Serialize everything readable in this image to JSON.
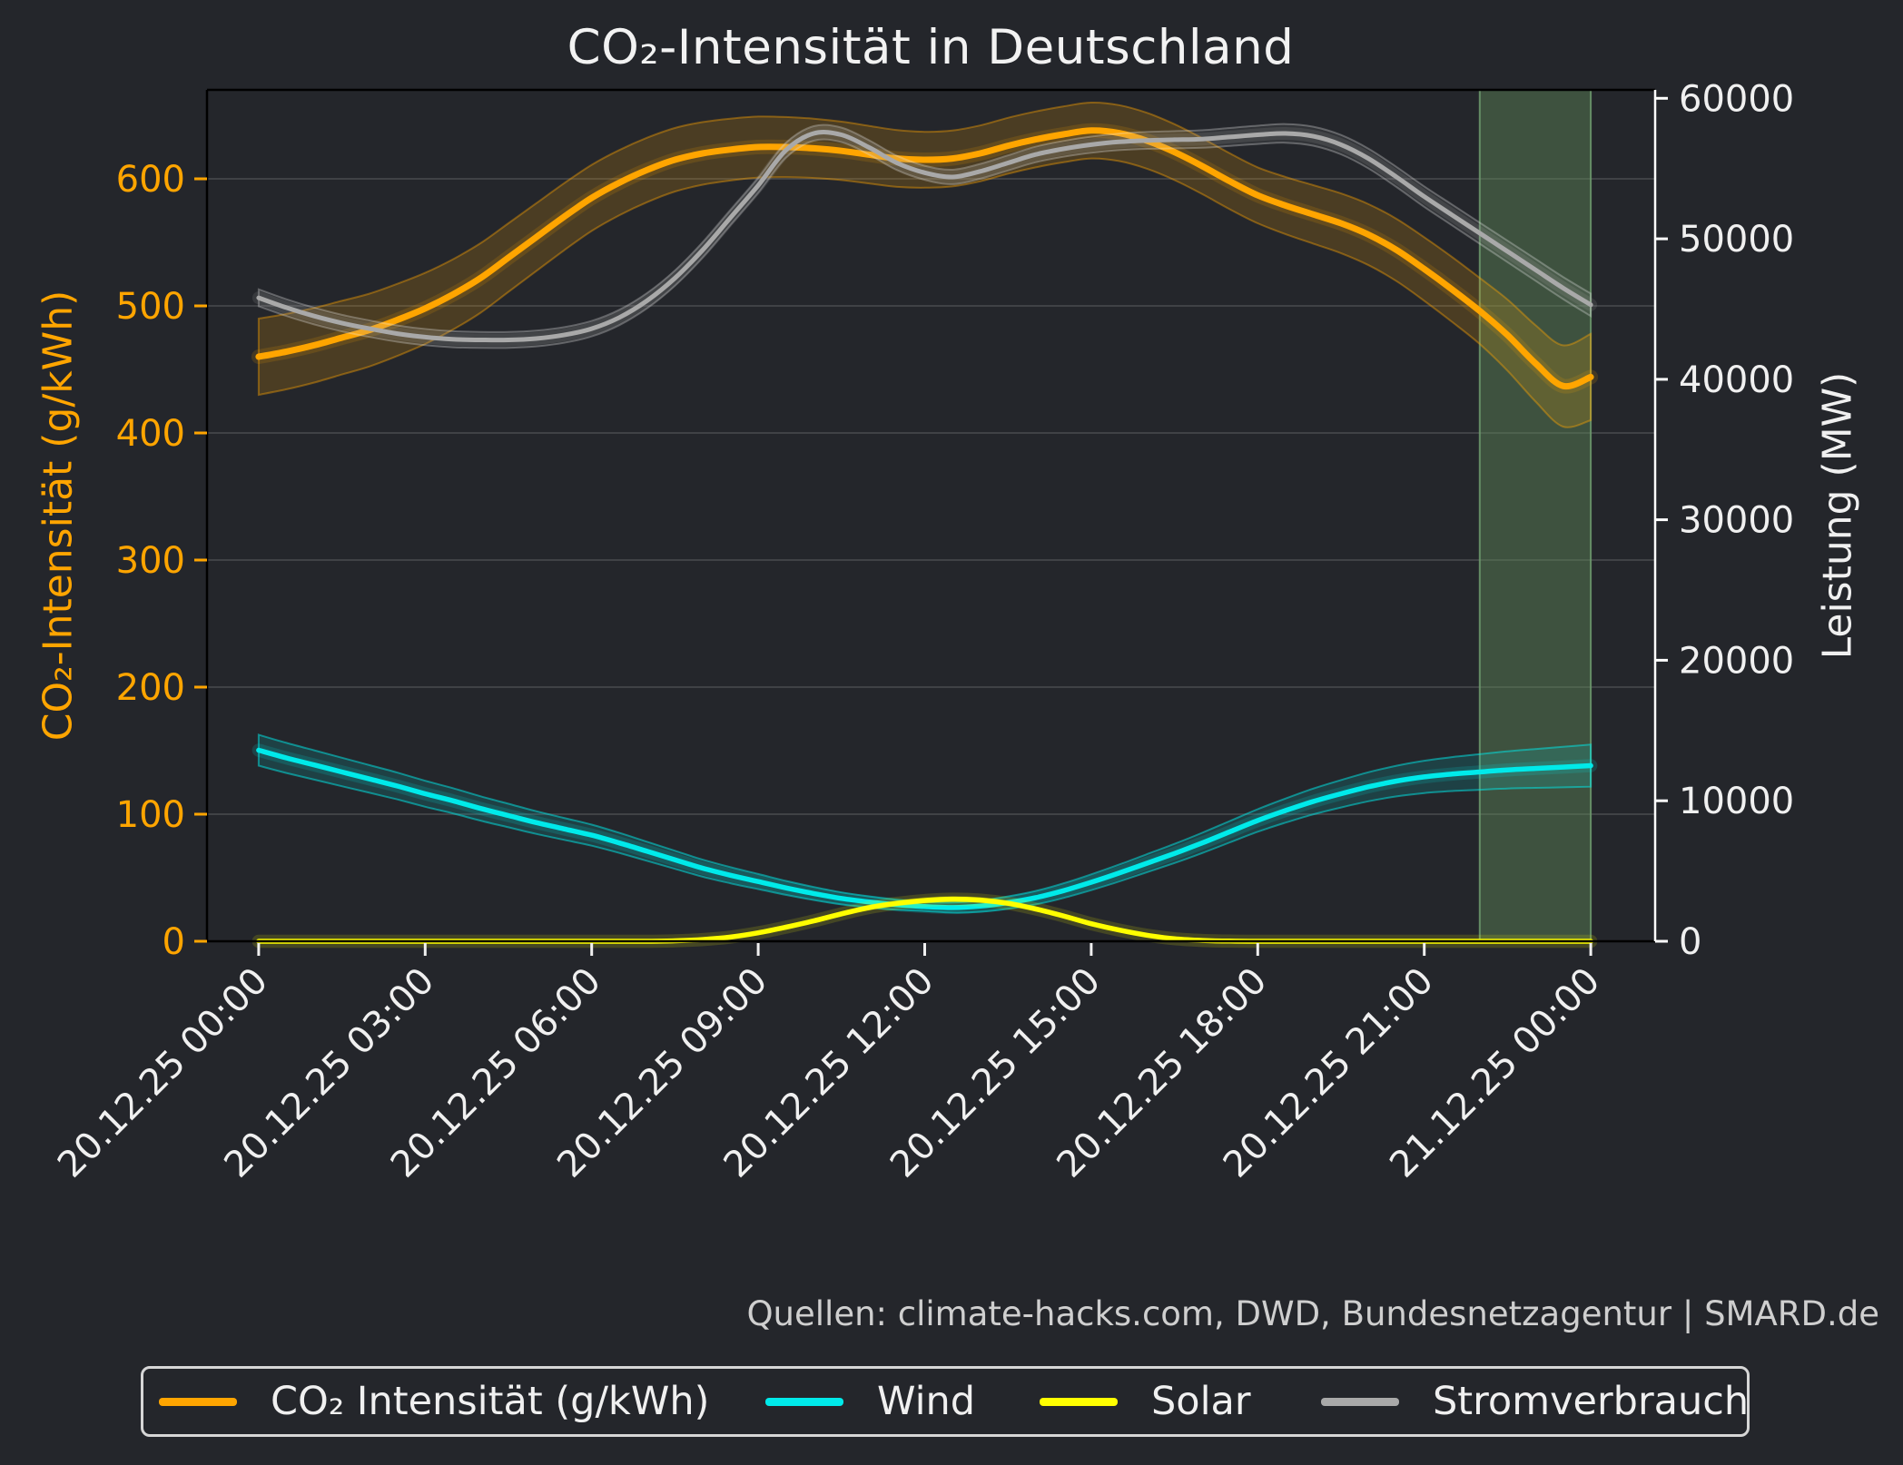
{
  "title": "CO₂-Intensität in Deutschland",
  "source_note": "Quellen: climate-hacks.com, DWD, Bundesnetzagentur | SMARD.de",
  "left_axis": {
    "label": "CO₂-Intensität (g/kWh)",
    "ticks": [
      0,
      100,
      200,
      300,
      400,
      500,
      600
    ],
    "range": [
      0,
      670
    ],
    "color": "#ffa500"
  },
  "right_axis": {
    "label": "Leistung (MW)",
    "ticks": [
      0,
      10000,
      20000,
      30000,
      40000,
      50000,
      60000
    ],
    "range": [
      0,
      60600
    ],
    "color": "#f0f0f0"
  },
  "x_axis": {
    "tick_hours": [
      0,
      3,
      6,
      9,
      12,
      15,
      18,
      21,
      24
    ],
    "tick_labels": [
      "20.12.25 00:00",
      "20.12.25 03:00",
      "20.12.25 06:00",
      "20.12.25 09:00",
      "20.12.25 12:00",
      "20.12.25 15:00",
      "20.12.25 18:00",
      "20.12.25 21:00",
      "21.12.25 00:00"
    ],
    "range_hours": [
      -0.93,
      25.16
    ],
    "color": "#f0f0f0"
  },
  "highlight_span": {
    "start_hour": 22,
    "end_hour": 24,
    "fill": "rgba(96,138,88,0.45)",
    "edge": "rgba(111,155,111,0.85)"
  },
  "colors": {
    "background": "#24262b",
    "grid": "rgba(255,255,255,0.13)",
    "spine": "#000000",
    "right_spine": "#ffffff",
    "title": "#f2f2f2",
    "tick_label_left": "#ffa500",
    "tick_label_right": "#f0f0f0",
    "tick_label_x": "#f0f0f0",
    "source": "#cfcfcf",
    "legend_border": "#d6d6d6"
  },
  "legend": {
    "items": [
      {
        "label": "CO₂ Intensität (g/kWh)",
        "color": "#ffa500"
      },
      {
        "label": "Wind",
        "color": "#00eaea"
      },
      {
        "label": "Solar",
        "color": "#ffff00"
      },
      {
        "label": "Stromverbrauch",
        "color": "#a9a9a9"
      }
    ]
  },
  "chart_data": {
    "type": "line",
    "title": "CO₂-Intensität in Deutschland",
    "xlabel": "",
    "ylabel_left": "CO₂-Intensität (g/kWh)",
    "ylabel_right": "Leistung (MW)",
    "x_unit": "hours since 20.12.25 00:00",
    "x_hours": [
      0,
      0.5,
      1,
      1.5,
      2,
      2.5,
      3,
      3.5,
      4,
      4.5,
      5,
      5.5,
      6,
      6.5,
      7,
      7.5,
      8,
      8.5,
      9,
      9.5,
      10,
      10.5,
      11,
      11.5,
      12,
      12.5,
      13,
      13.5,
      14,
      14.5,
      15,
      15.5,
      16,
      16.5,
      17,
      17.5,
      18,
      18.5,
      19,
      19.5,
      20,
      20.5,
      21,
      21.5,
      22,
      22.5,
      23,
      23.5,
      24
    ],
    "series": [
      {
        "id": "co2",
        "name": "CO₂ Intensität (g/kWh)",
        "axis": "left",
        "unit": "g/kWh",
        "color": "#ffa500",
        "line_width": 7,
        "values": [
          460,
          464,
          469,
          475,
          481,
          489,
          498,
          509,
          522,
          538,
          554,
          570,
          585,
          597,
          607,
          615,
          620,
          623,
          625,
          625,
          624,
          622,
          619,
          616,
          615,
          616,
          620,
          626,
          631,
          635,
          638,
          636,
          630,
          621,
          610,
          598,
          587,
          579,
          572,
          565,
          556,
          544,
          529,
          513,
          496,
          477,
          455,
          437,
          444
        ],
        "ci_halfwidth": [
          [
            0,
            30
          ],
          [
            6,
            26
          ],
          [
            12,
            22
          ],
          [
            18,
            22
          ],
          [
            22,
            26
          ],
          [
            24,
            34
          ]
        ]
      },
      {
        "id": "wind",
        "name": "Wind",
        "axis": "right",
        "unit": "MW",
        "color": "#00eaea",
        "line_width": 5.5,
        "values": [
          13600,
          13050,
          12550,
          12050,
          11550,
          11050,
          10500,
          10000,
          9450,
          8950,
          8450,
          8000,
          7550,
          7000,
          6400,
          5800,
          5200,
          4700,
          4250,
          3800,
          3400,
          3050,
          2800,
          2600,
          2470,
          2400,
          2500,
          2750,
          3100,
          3600,
          4200,
          4850,
          5550,
          6250,
          7000,
          7800,
          8600,
          9300,
          9950,
          10500,
          11000,
          11400,
          11700,
          11900,
          12050,
          12200,
          12300,
          12400,
          12500
        ],
        "ci_halfwidth": [
          [
            0,
            1100
          ],
          [
            6,
            750
          ],
          [
            12,
            320
          ],
          [
            18,
            800
          ],
          [
            24,
            1500
          ]
        ]
      },
      {
        "id": "solar",
        "name": "Solar",
        "axis": "right",
        "unit": "MW",
        "color": "#ffff00",
        "line_width": 5.5,
        "values": [
          0,
          0,
          0,
          0,
          0,
          0,
          0,
          0,
          0,
          0,
          0,
          0,
          0,
          0,
          0,
          30,
          120,
          300,
          600,
          1000,
          1450,
          1950,
          2400,
          2700,
          2900,
          3000,
          2930,
          2700,
          2300,
          1800,
          1250,
          800,
          430,
          180,
          60,
          10,
          0,
          0,
          0,
          0,
          0,
          0,
          0,
          0,
          0,
          0,
          0,
          0,
          0
        ],
        "ci_halfwidth": [
          [
            0,
            0
          ],
          [
            7,
            0
          ],
          [
            9,
            90
          ],
          [
            12,
            160
          ],
          [
            15,
            110
          ],
          [
            17,
            40
          ],
          [
            17.8,
            0
          ],
          [
            24,
            0
          ]
        ]
      },
      {
        "id": "consumption",
        "name": "Stromverbrauch",
        "axis": "right",
        "unit": "MW",
        "color": "#a9a9a9",
        "line_width": 5,
        "values": [
          45800,
          45100,
          44500,
          44000,
          43600,
          43250,
          43000,
          42850,
          42800,
          42800,
          42900,
          43150,
          43600,
          44400,
          45600,
          47200,
          49200,
          51500,
          53800,
          56300,
          57500,
          57400,
          56500,
          55400,
          54700,
          54400,
          54800,
          55400,
          56000,
          56400,
          56700,
          56900,
          57000,
          57050,
          57100,
          57250,
          57400,
          57500,
          57300,
          56700,
          55700,
          54400,
          53000,
          51700,
          50400,
          49100,
          47800,
          46500,
          45300
        ],
        "ci_halfwidth": [
          [
            0,
            600
          ],
          [
            12,
            500
          ],
          [
            24,
            800
          ]
        ]
      }
    ]
  }
}
